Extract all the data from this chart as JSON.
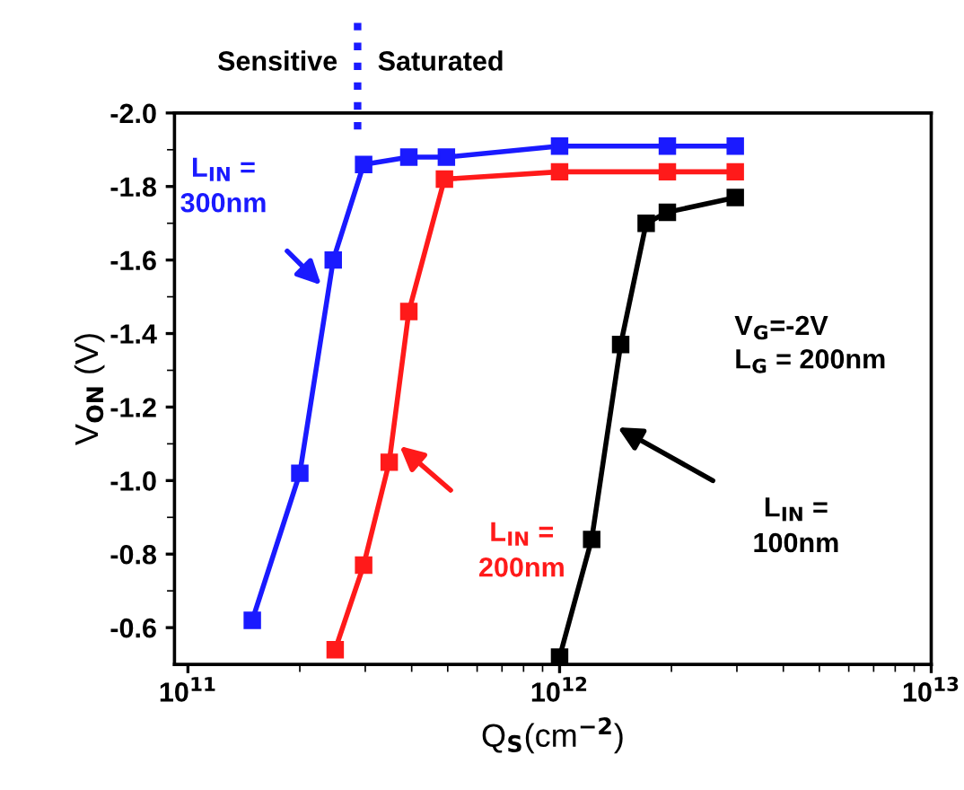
{
  "chart_data": {
    "type": "line",
    "xlabel": "Q$_{S}$(cm$^{−2}$)",
    "ylabel": "V$_{ON}$ (V)",
    "log": "x",
    "xlim": [
      92000000000.0,
      10000000000000.0
    ],
    "ylim": [
      -0.5,
      -2.0
    ],
    "xticks": [
      {
        "value": 100000000000.0,
        "label": "10$^{11}$"
      },
      {
        "value": 1000000000000.0,
        "label": "10$^{12}$"
      },
      {
        "value": 10000000000000.0,
        "label": "10$^{13}$"
      }
    ],
    "yticks": [
      {
        "value": -2.0,
        "label": "-2.0"
      },
      {
        "value": -1.8,
        "label": "-1.8"
      },
      {
        "value": -1.6,
        "label": "-1.6"
      },
      {
        "value": -1.4,
        "label": "-1.4"
      },
      {
        "value": -1.2,
        "label": "-1.2"
      },
      {
        "value": -1.0,
        "label": "-1.0"
      },
      {
        "value": -0.8,
        "label": "-0.8"
      },
      {
        "value": -0.6,
        "label": "-0.6"
      }
    ],
    "marker": "square",
    "line_style": "solid",
    "grid": false,
    "legend": false,
    "series": [
      {
        "name": "L$_{IN}$ =\n300nm",
        "color": "#1a1aff",
        "x": [
          149000000000.0,
          200000000000.0,
          246000000000.0,
          297000000000.0,
          393000000000.0,
          496000000000.0,
          1000000000000.0,
          1950000000000.0,
          2970000000000.0
        ],
        "values": [
          -0.62,
          -1.02,
          -1.6,
          -1.86,
          -1.88,
          -1.88,
          -1.91,
          -1.91,
          -1.91
        ]
      },
      {
        "name": "L$_{IN}$ =\n200nm",
        "color": "#ff1a1a",
        "x": [
          249000000000.0,
          297000000000.0,
          348000000000.0,
          393000000000.0,
          490000000000.0,
          1000000000000.0,
          1950000000000.0,
          2970000000000.0
        ],
        "values": [
          -0.54,
          -0.77,
          -1.05,
          -1.46,
          -1.82,
          -1.84,
          -1.84,
          -1.84
        ]
      },
      {
        "name": "L$_{IN}$ =\n100nm",
        "color": "#000000",
        "x": [
          1000000000000.0,
          1220000000000.0,
          1460000000000.0,
          1710000000000.0,
          1950000000000.0,
          2970000000000.0
        ],
        "values": [
          -0.52,
          -0.84,
          -1.37,
          -1.7,
          -1.73,
          -1.77
        ]
      }
    ],
    "annotations": [
      "Sensitive",
      "Saturated",
      "V$_{G}$=-2V\nL$_{G}$ = 200nm"
    ]
  }
}
